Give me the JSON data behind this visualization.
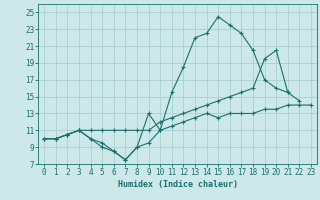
{
  "xlabel": "Humidex (Indice chaleur)",
  "bg_color": "#cce8e8",
  "grid_color": "#aacfcf",
  "line_color": "#1a7070",
  "xlim": [
    -0.5,
    23.5
  ],
  "ylim": [
    7,
    26
  ],
  "xticks": [
    0,
    1,
    2,
    3,
    4,
    5,
    6,
    7,
    8,
    9,
    10,
    11,
    12,
    13,
    14,
    15,
    16,
    17,
    18,
    19,
    20,
    21,
    22,
    23
  ],
  "yticks": [
    7,
    9,
    11,
    13,
    15,
    17,
    19,
    21,
    23,
    25
  ],
  "line1_y": [
    10.0,
    10.0,
    10.5,
    11.0,
    10.0,
    9.0,
    8.5,
    7.5,
    9.0,
    13.0,
    11.0,
    15.5,
    18.5,
    22.0,
    22.5,
    24.5,
    23.5,
    22.5,
    20.5,
    17.0,
    16.0,
    15.5,
    14.5,
    null
  ],
  "line2_y": [
    10.0,
    10.0,
    10.5,
    11.0,
    11.0,
    11.0,
    11.0,
    11.0,
    11.0,
    11.0,
    12.0,
    12.5,
    13.0,
    13.5,
    14.0,
    14.5,
    15.0,
    15.5,
    16.0,
    19.5,
    20.5,
    15.5,
    null,
    null
  ],
  "line3_y": [
    10.0,
    10.0,
    10.5,
    11.0,
    10.0,
    9.5,
    8.5,
    7.5,
    9.0,
    9.5,
    11.0,
    11.5,
    12.0,
    12.5,
    13.0,
    12.5,
    13.0,
    13.0,
    13.0,
    13.5,
    13.5,
    14.0,
    14.0,
    14.0
  ]
}
